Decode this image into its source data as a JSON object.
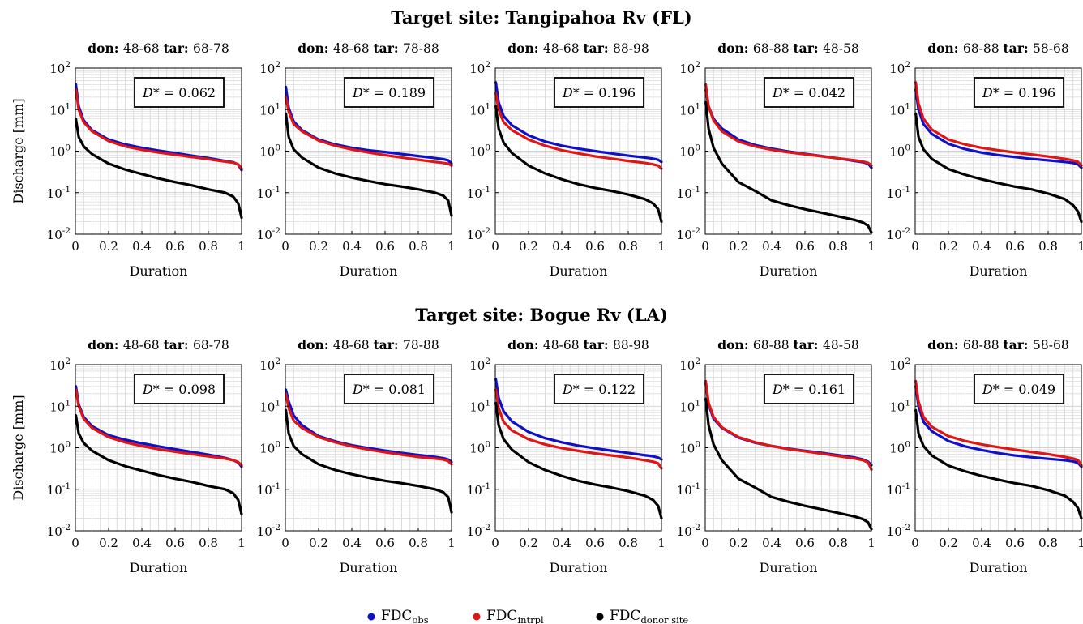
{
  "rows": [
    {
      "title": "Target site:  Tangipahoa Rv (FL)"
    },
    {
      "title": "Target site:  Bogue Rv (LA)"
    }
  ],
  "chart_data": [
    {
      "type": "line",
      "row": 0,
      "col": 0,
      "title_don_key": "don:",
      "title_don": "48-68",
      "title_tar_key": "tar:",
      "title_tar": "68-78",
      "xlabel": "Duration",
      "ylabel": "Discharge [mm]",
      "xlim": [
        0,
        1
      ],
      "ylim": [
        0.01,
        100
      ],
      "yscale": "log",
      "grid": true,
      "d_star_label": "D* =",
      "d_star": "0.062",
      "x": [
        0.003,
        0.02,
        0.05,
        0.1,
        0.2,
        0.3,
        0.4,
        0.5,
        0.6,
        0.7,
        0.8,
        0.9,
        0.95,
        0.98,
        1.0
      ],
      "series": [
        {
          "name": "FDC_obs",
          "color": "#1010c8",
          "values": [
            40,
            12,
            5.5,
            3.2,
            1.9,
            1.45,
            1.2,
            1.03,
            0.9,
            0.78,
            0.68,
            0.58,
            0.54,
            0.47,
            0.35
          ]
        },
        {
          "name": "FDC_intrpl",
          "color": "#e01515",
          "values": [
            30,
            10,
            5.0,
            3.0,
            1.75,
            1.3,
            1.08,
            0.93,
            0.82,
            0.72,
            0.64,
            0.56,
            0.53,
            0.48,
            0.38
          ]
        },
        {
          "name": "FDC_donor site",
          "color": "#000000",
          "values": [
            6,
            2.2,
            1.3,
            0.85,
            0.5,
            0.36,
            0.28,
            0.22,
            0.18,
            0.15,
            0.12,
            0.1,
            0.08,
            0.055,
            0.025
          ]
        }
      ]
    },
    {
      "type": "line",
      "row": 0,
      "col": 1,
      "title_don_key": "don:",
      "title_don": "48-68",
      "title_tar_key": "tar:",
      "title_tar": "78-88",
      "xlabel": "Duration",
      "ylabel": "",
      "xlim": [
        0,
        1
      ],
      "ylim": [
        0.01,
        100
      ],
      "yscale": "log",
      "grid": true,
      "d_star_label": "D* =",
      "d_star": "0.189",
      "x": [
        0.003,
        0.02,
        0.05,
        0.1,
        0.2,
        0.3,
        0.4,
        0.5,
        0.6,
        0.7,
        0.8,
        0.9,
        0.95,
        0.98,
        1.0
      ],
      "series": [
        {
          "name": "FDC_obs",
          "color": "#1010c8",
          "values": [
            35,
            11,
            5.2,
            3.2,
            1.9,
            1.45,
            1.2,
            1.05,
            0.95,
            0.85,
            0.76,
            0.68,
            0.64,
            0.6,
            0.5
          ]
        },
        {
          "name": "FDC_intrpl",
          "color": "#e01515",
          "values": [
            20,
            9,
            4.5,
            3.0,
            1.8,
            1.35,
            1.1,
            0.93,
            0.8,
            0.7,
            0.62,
            0.55,
            0.52,
            0.5,
            0.45
          ]
        },
        {
          "name": "FDC_donor site",
          "color": "#000000",
          "values": [
            8,
            2.2,
            1.1,
            0.7,
            0.4,
            0.29,
            0.23,
            0.19,
            0.16,
            0.14,
            0.12,
            0.1,
            0.085,
            0.065,
            0.028
          ]
        }
      ]
    },
    {
      "type": "line",
      "row": 0,
      "col": 2,
      "title_don_key": "don:",
      "title_don": "48-68",
      "title_tar_key": "tar:",
      "title_tar": "88-98",
      "xlabel": "Duration",
      "ylabel": "",
      "xlim": [
        0,
        1
      ],
      "ylim": [
        0.01,
        100
      ],
      "yscale": "log",
      "grid": true,
      "d_star_label": "D* =",
      "d_star": "0.196",
      "x": [
        0.003,
        0.02,
        0.05,
        0.1,
        0.2,
        0.3,
        0.4,
        0.5,
        0.6,
        0.7,
        0.8,
        0.9,
        0.95,
        0.98,
        1.0
      ],
      "series": [
        {
          "name": "FDC_obs",
          "color": "#1010c8",
          "values": [
            45,
            15,
            7,
            4.2,
            2.4,
            1.7,
            1.35,
            1.15,
            1.0,
            0.88,
            0.78,
            0.7,
            0.66,
            0.62,
            0.55
          ]
        },
        {
          "name": "FDC_intrpl",
          "color": "#e01515",
          "values": [
            25,
            10,
            5,
            3.2,
            1.9,
            1.35,
            1.05,
            0.88,
            0.75,
            0.66,
            0.58,
            0.52,
            0.48,
            0.45,
            0.38
          ]
        },
        {
          "name": "FDC_donor site",
          "color": "#000000",
          "values": [
            12,
            3.5,
            1.6,
            0.9,
            0.45,
            0.29,
            0.21,
            0.16,
            0.13,
            0.11,
            0.09,
            0.07,
            0.055,
            0.04,
            0.02
          ]
        }
      ]
    },
    {
      "type": "line",
      "row": 0,
      "col": 3,
      "title_don_key": "don:",
      "title_don": "68-88",
      "title_tar_key": "tar:",
      "title_tar": "48-58",
      "xlabel": "Duration",
      "ylabel": "",
      "xlim": [
        0,
        1
      ],
      "ylim": [
        0.01,
        100
      ],
      "yscale": "log",
      "grid": true,
      "d_star_label": "D* =",
      "d_star": "0.042",
      "x": [
        0.003,
        0.02,
        0.05,
        0.1,
        0.2,
        0.3,
        0.4,
        0.5,
        0.6,
        0.7,
        0.8,
        0.9,
        0.95,
        0.98,
        1.0
      ],
      "series": [
        {
          "name": "FDC_obs",
          "color": "#1010c8",
          "values": [
            30,
            12,
            6,
            3.5,
            1.9,
            1.4,
            1.15,
            0.98,
            0.86,
            0.76,
            0.67,
            0.58,
            0.54,
            0.5,
            0.4
          ]
        },
        {
          "name": "FDC_intrpl",
          "color": "#e01515",
          "values": [
            40,
            12,
            5.5,
            3.0,
            1.7,
            1.3,
            1.08,
            0.94,
            0.84,
            0.75,
            0.67,
            0.6,
            0.56,
            0.52,
            0.45
          ]
        },
        {
          "name": "FDC_donor site",
          "color": "#000000",
          "values": [
            15,
            3.5,
            1.2,
            0.5,
            0.18,
            0.11,
            0.065,
            0.05,
            0.04,
            0.033,
            0.027,
            0.022,
            0.019,
            0.016,
            0.011
          ]
        }
      ]
    },
    {
      "type": "line",
      "row": 0,
      "col": 4,
      "title_don_key": "don:",
      "title_don": "68-88",
      "title_tar_key": "tar:",
      "title_tar": "58-68",
      "xlabel": "Duration",
      "ylabel": "",
      "xlim": [
        0,
        1
      ],
      "ylim": [
        0.01,
        100
      ],
      "yscale": "log",
      "grid": true,
      "d_star_label": "D* =",
      "d_star": "0.196",
      "x": [
        0.003,
        0.02,
        0.05,
        0.1,
        0.2,
        0.3,
        0.4,
        0.5,
        0.6,
        0.7,
        0.8,
        0.9,
        0.95,
        0.98,
        1.0
      ],
      "series": [
        {
          "name": "FDC_obs",
          "color": "#1010c8",
          "values": [
            30,
            10,
            4.5,
            2.6,
            1.5,
            1.12,
            0.92,
            0.8,
            0.72,
            0.65,
            0.6,
            0.55,
            0.52,
            0.48,
            0.4
          ]
        },
        {
          "name": "FDC_intrpl",
          "color": "#e01515",
          "values": [
            45,
            14,
            6,
            3.3,
            1.9,
            1.45,
            1.2,
            1.05,
            0.93,
            0.83,
            0.74,
            0.65,
            0.6,
            0.55,
            0.45
          ]
        },
        {
          "name": "FDC_donor site",
          "color": "#000000",
          "values": [
            8,
            2.2,
            1.1,
            0.65,
            0.37,
            0.27,
            0.21,
            0.17,
            0.14,
            0.12,
            0.095,
            0.07,
            0.05,
            0.035,
            0.02
          ]
        }
      ]
    },
    {
      "type": "line",
      "row": 1,
      "col": 0,
      "title_don_key": "don:",
      "title_don": "48-68",
      "title_tar_key": "tar:",
      "title_tar": "68-78",
      "xlabel": "Duration",
      "ylabel": "Discharge [mm]",
      "xlim": [
        0,
        1
      ],
      "ylim": [
        0.01,
        100
      ],
      "yscale": "log",
      "grid": true,
      "d_star_label": "D* =",
      "d_star": "0.098",
      "x": [
        0.003,
        0.02,
        0.05,
        0.1,
        0.2,
        0.3,
        0.4,
        0.5,
        0.6,
        0.7,
        0.8,
        0.9,
        0.95,
        0.98,
        1.0
      ],
      "series": [
        {
          "name": "FDC_obs",
          "color": "#1010c8",
          "values": [
            30,
            11,
            5.5,
            3.3,
            2.0,
            1.55,
            1.28,
            1.08,
            0.92,
            0.79,
            0.68,
            0.57,
            0.5,
            0.44,
            0.35
          ]
        },
        {
          "name": "FDC_intrpl",
          "color": "#e01515",
          "values": [
            25,
            10,
            5.0,
            3.0,
            1.8,
            1.35,
            1.1,
            0.92,
            0.8,
            0.7,
            0.62,
            0.55,
            0.5,
            0.45,
            0.38
          ]
        },
        {
          "name": "FDC_donor site",
          "color": "#000000",
          "values": [
            6,
            2.2,
            1.3,
            0.85,
            0.5,
            0.36,
            0.28,
            0.22,
            0.18,
            0.15,
            0.12,
            0.1,
            0.08,
            0.055,
            0.025
          ]
        }
      ]
    },
    {
      "type": "line",
      "row": 1,
      "col": 1,
      "title_don_key": "don:",
      "title_don": "48-68",
      "title_tar_key": "tar:",
      "title_tar": "78-88",
      "xlabel": "Duration",
      "ylabel": "",
      "xlim": [
        0,
        1
      ],
      "ylim": [
        0.01,
        100
      ],
      "yscale": "log",
      "grid": true,
      "d_star_label": "D* =",
      "d_star": "0.081",
      "x": [
        0.003,
        0.02,
        0.05,
        0.1,
        0.2,
        0.3,
        0.4,
        0.5,
        0.6,
        0.7,
        0.8,
        0.9,
        0.95,
        0.98,
        1.0
      ],
      "series": [
        {
          "name": "FDC_obs",
          "color": "#1010c8",
          "values": [
            25,
            13,
            6,
            3.5,
            1.9,
            1.42,
            1.15,
            0.98,
            0.85,
            0.75,
            0.67,
            0.6,
            0.56,
            0.52,
            0.45
          ]
        },
        {
          "name": "FDC_intrpl",
          "color": "#e01515",
          "values": [
            20,
            9,
            4.5,
            3.0,
            1.8,
            1.35,
            1.08,
            0.9,
            0.78,
            0.68,
            0.6,
            0.55,
            0.52,
            0.48,
            0.4
          ]
        },
        {
          "name": "FDC_donor site",
          "color": "#000000",
          "values": [
            8,
            2.2,
            1.1,
            0.7,
            0.4,
            0.29,
            0.23,
            0.19,
            0.16,
            0.14,
            0.12,
            0.1,
            0.085,
            0.065,
            0.028
          ]
        }
      ]
    },
    {
      "type": "line",
      "row": 1,
      "col": 2,
      "title_don_key": "don:",
      "title_don": "48-68",
      "title_tar_key": "tar:",
      "title_tar": "88-98",
      "xlabel": "Duration",
      "ylabel": "",
      "xlim": [
        0,
        1
      ],
      "ylim": [
        0.01,
        100
      ],
      "yscale": "log",
      "grid": true,
      "d_star_label": "D* =",
      "d_star": "0.122",
      "x": [
        0.003,
        0.02,
        0.05,
        0.1,
        0.2,
        0.3,
        0.4,
        0.5,
        0.6,
        0.7,
        0.8,
        0.9,
        0.95,
        0.98,
        1.0
      ],
      "series": [
        {
          "name": "FDC_obs",
          "color": "#1010c8",
          "values": [
            45,
            16,
            7.5,
            4.3,
            2.4,
            1.7,
            1.35,
            1.12,
            0.97,
            0.85,
            0.75,
            0.66,
            0.62,
            0.58,
            0.52
          ]
        },
        {
          "name": "FDC_intrpl",
          "color": "#e01515",
          "values": [
            25,
            9,
            4.2,
            2.6,
            1.6,
            1.2,
            0.98,
            0.84,
            0.73,
            0.65,
            0.58,
            0.5,
            0.46,
            0.42,
            0.32
          ]
        },
        {
          "name": "FDC_donor site",
          "color": "#000000",
          "values": [
            12,
            3.5,
            1.6,
            0.9,
            0.45,
            0.29,
            0.21,
            0.16,
            0.13,
            0.11,
            0.09,
            0.07,
            0.055,
            0.04,
            0.02
          ]
        }
      ]
    },
    {
      "type": "line",
      "row": 1,
      "col": 3,
      "title_don_key": "don:",
      "title_don": "68-88",
      "title_tar_key": "tar:",
      "title_tar": "48-58",
      "xlabel": "Duration",
      "ylabel": "",
      "xlim": [
        0,
        1
      ],
      "ylim": [
        0.01,
        100
      ],
      "yscale": "log",
      "grid": true,
      "d_star_label": "D* =",
      "d_star": "0.161",
      "x": [
        0.003,
        0.02,
        0.05,
        0.1,
        0.2,
        0.3,
        0.4,
        0.5,
        0.6,
        0.7,
        0.8,
        0.9,
        0.95,
        0.98,
        1.0
      ],
      "series": [
        {
          "name": "FDC_obs",
          "color": "#1010c8",
          "values": [
            35,
            11,
            5.0,
            3.0,
            1.75,
            1.32,
            1.1,
            0.95,
            0.84,
            0.75,
            0.66,
            0.58,
            0.52,
            0.46,
            0.38
          ]
        },
        {
          "name": "FDC_intrpl",
          "color": "#e01515",
          "values": [
            40,
            12,
            5.5,
            3.1,
            1.8,
            1.35,
            1.1,
            0.93,
            0.82,
            0.72,
            0.63,
            0.55,
            0.5,
            0.44,
            0.3
          ]
        },
        {
          "name": "FDC_donor site",
          "color": "#000000",
          "values": [
            15,
            3.5,
            1.2,
            0.5,
            0.18,
            0.11,
            0.065,
            0.05,
            0.04,
            0.033,
            0.027,
            0.022,
            0.019,
            0.016,
            0.011
          ]
        }
      ]
    },
    {
      "type": "line",
      "row": 1,
      "col": 4,
      "title_don_key": "don:",
      "title_don": "68-88",
      "title_tar_key": "tar:",
      "title_tar": "58-68",
      "xlabel": "Duration",
      "ylabel": "",
      "xlim": [
        0,
        1
      ],
      "ylim": [
        0.01,
        100
      ],
      "yscale": "log",
      "grid": true,
      "d_star_label": "D* =",
      "d_star": "0.049",
      "x": [
        0.003,
        0.02,
        0.05,
        0.1,
        0.2,
        0.3,
        0.4,
        0.5,
        0.6,
        0.7,
        0.8,
        0.9,
        0.95,
        0.98,
        1.0
      ],
      "series": [
        {
          "name": "FDC_obs",
          "color": "#1010c8",
          "values": [
            30,
            10,
            4.2,
            2.5,
            1.45,
            1.08,
            0.88,
            0.74,
            0.65,
            0.59,
            0.54,
            0.5,
            0.47,
            0.43,
            0.35
          ]
        },
        {
          "name": "FDC_intrpl",
          "color": "#e01515",
          "values": [
            40,
            13,
            5.5,
            3.2,
            1.9,
            1.45,
            1.2,
            1.03,
            0.9,
            0.79,
            0.7,
            0.6,
            0.55,
            0.5,
            0.38
          ]
        },
        {
          "name": "FDC_donor site",
          "color": "#000000",
          "values": [
            8,
            2.2,
            1.1,
            0.65,
            0.37,
            0.27,
            0.21,
            0.17,
            0.14,
            0.12,
            0.095,
            0.07,
            0.05,
            0.035,
            0.02
          ]
        }
      ]
    }
  ],
  "axes": {
    "x_ticks": [
      "0",
      "0.2",
      "0.4",
      "0.6",
      "0.8",
      "1"
    ],
    "y_tick_base": "10",
    "y_tick_exps": [
      "2",
      "1",
      "0",
      "-1",
      "-2"
    ]
  },
  "legend": {
    "position": "bottom-center",
    "items": [
      {
        "main": "FDC",
        "sub": "obs",
        "color": "#1010c8"
      },
      {
        "main": "FDC",
        "sub": "intrpl",
        "color": "#e01515"
      },
      {
        "main": "FDC",
        "sub": "donor site",
        "color": "#000000"
      }
    ]
  }
}
